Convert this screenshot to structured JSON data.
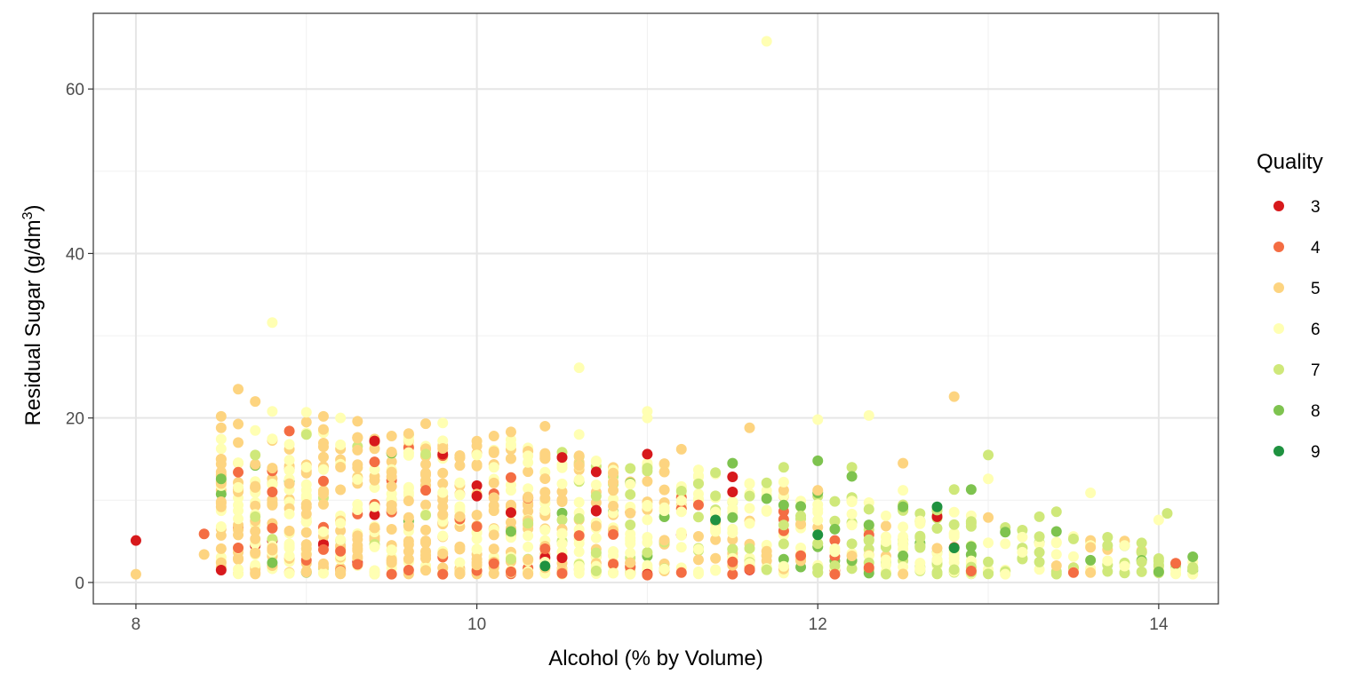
{
  "chart_data": {
    "type": "scatter",
    "title": "",
    "xlabel": "Alcohol (% by Volume)",
    "ylabel_main": "Residual Sugar (g/dm",
    "ylabel_sup": "3",
    "ylabel_end": ")",
    "xlim": [
      7.75,
      14.35
    ],
    "ylim": [
      -2.6,
      69.2
    ],
    "x_ticks": [
      8,
      10,
      12,
      14
    ],
    "x_tick_labels": [
      "8",
      "10",
      "12",
      "14"
    ],
    "y_ticks": [
      0,
      20,
      40,
      60
    ],
    "y_tick_labels": [
      "0",
      "20",
      "40",
      "60"
    ],
    "grid": true,
    "legend": {
      "title": "Quality",
      "placement": "right",
      "entries": [
        {
          "label": "3",
          "color": "#d7191c"
        },
        {
          "label": "4",
          "color": "#f46d43"
        },
        {
          "label": "5",
          "color": "#fdd480"
        },
        {
          "label": "6",
          "color": "#ffffb3"
        },
        {
          "label": "7",
          "color": "#cfe87a"
        },
        {
          "label": "8",
          "color": "#7ec34f"
        },
        {
          "label": "9",
          "color": "#1f9240"
        }
      ]
    },
    "series": [
      {
        "name": "3",
        "color": "#d7191c",
        "points": [
          [
            8.0,
            5.1
          ],
          [
            8.5,
            1.5
          ],
          [
            9.1,
            4.6
          ],
          [
            9.4,
            17.2
          ],
          [
            9.8,
            15.6
          ],
          [
            10.0,
            10.5
          ],
          [
            10.2,
            8.5
          ],
          [
            10.5,
            15.2
          ],
          [
            10.5,
            3.0
          ],
          [
            11.0,
            15.6
          ],
          [
            11.0,
            1.0
          ],
          [
            11.5,
            11.0
          ],
          [
            12.7,
            8.0
          ]
        ]
      },
      {
        "name": "4",
        "color": "#f46d43",
        "points": [
          [
            8.4,
            5.9
          ],
          [
            8.6,
            13.4
          ],
          [
            8.6,
            4.2
          ],
          [
            8.8,
            11.0
          ],
          [
            8.8,
            6.6
          ],
          [
            9.1,
            4.0
          ],
          [
            9.2,
            3.8
          ],
          [
            9.3,
            2.2
          ],
          [
            9.5,
            1.0
          ],
          [
            9.6,
            1.5
          ],
          [
            9.7,
            11.2
          ],
          [
            9.8,
            1.0
          ],
          [
            10.1,
            2.3
          ],
          [
            10.2,
            1.3
          ],
          [
            10.4,
            4.1
          ],
          [
            10.5,
            1.1
          ],
          [
            10.6,
            5.7
          ],
          [
            11.0,
            0.9
          ],
          [
            11.2,
            1.2
          ],
          [
            11.5,
            2.5
          ],
          [
            11.6,
            1.6
          ],
          [
            12.1,
            1.0
          ],
          [
            12.3,
            1.8
          ],
          [
            12.9,
            1.4
          ],
          [
            13.5,
            1.2
          ]
        ]
      },
      {
        "name": "5",
        "color": "#fdd480",
        "points": [
          [
            8.0,
            1.0
          ],
          [
            8.4,
            3.4
          ],
          [
            8.5,
            20.2
          ],
          [
            8.5,
            9.2
          ],
          [
            8.6,
            23.5
          ],
          [
            8.7,
            22.0
          ],
          [
            8.7,
            1.2
          ],
          [
            8.8,
            13.9
          ],
          [
            9.0,
            19.5
          ],
          [
            9.1,
            20.2
          ],
          [
            9.3,
            19.6
          ],
          [
            9.5,
            17.8
          ],
          [
            9.6,
            18.1
          ],
          [
            9.7,
            19.3
          ],
          [
            9.8,
            16.3
          ],
          [
            9.9,
            15.2
          ],
          [
            10.1,
            17.8
          ],
          [
            10.2,
            18.3
          ],
          [
            10.4,
            19.0
          ],
          [
            10.6,
            14.2
          ],
          [
            10.8,
            13.3
          ],
          [
            11.0,
            12.3
          ],
          [
            11.2,
            16.2
          ],
          [
            11.6,
            18.8
          ],
          [
            12.0,
            11.2
          ],
          [
            12.5,
            14.5
          ],
          [
            12.8,
            22.6
          ],
          [
            13.6,
            1.2
          ]
        ]
      },
      {
        "name": "6",
        "color": "#ffffb3",
        "points": [
          [
            8.8,
            31.6
          ],
          [
            10.6,
            26.1
          ],
          [
            11.7,
            65.8
          ],
          [
            8.8,
            20.8
          ],
          [
            9.0,
            20.7
          ],
          [
            9.2,
            20.0
          ],
          [
            9.8,
            19.4
          ],
          [
            10.0,
            15.5
          ],
          [
            10.3,
            14.6
          ],
          [
            10.6,
            18.0
          ],
          [
            11.0,
            20.8
          ],
          [
            11.0,
            20.0
          ],
          [
            11.3,
            13.0
          ],
          [
            11.8,
            12.2
          ],
          [
            12.0,
            19.8
          ],
          [
            12.3,
            20.3
          ],
          [
            12.5,
            11.2
          ],
          [
            13.0,
            12.6
          ],
          [
            13.6,
            10.9
          ],
          [
            13.8,
            4.5
          ],
          [
            14.0,
            7.6
          ],
          [
            9.4,
            1.0
          ],
          [
            10.9,
            1.0
          ]
        ]
      },
      {
        "name": "7",
        "color": "#cfe87a",
        "points": [
          [
            8.7,
            15.5
          ],
          [
            8.7,
            8.0
          ],
          [
            9.0,
            18.0
          ],
          [
            9.7,
            15.6
          ],
          [
            10.3,
            7.2
          ],
          [
            10.7,
            10.5
          ],
          [
            11.0,
            13.9
          ],
          [
            11.3,
            12.0
          ],
          [
            11.6,
            10.5
          ],
          [
            11.8,
            14.0
          ],
          [
            12.2,
            14.0
          ],
          [
            12.7,
            8.8
          ],
          [
            12.8,
            11.3
          ],
          [
            13.0,
            15.5
          ],
          [
            13.3,
            8.0
          ],
          [
            13.4,
            8.6
          ],
          [
            13.5,
            5.3
          ],
          [
            13.7,
            4.5
          ],
          [
            13.9,
            2.5
          ],
          [
            14.0,
            2.6
          ],
          [
            14.05,
            8.4
          ],
          [
            14.2,
            1.6
          ]
        ]
      },
      {
        "name": "8",
        "color": "#7ec34f",
        "points": [
          [
            8.5,
            12.6
          ],
          [
            8.8,
            2.4
          ],
          [
            10.2,
            6.2
          ],
          [
            11.5,
            14.5
          ],
          [
            11.5,
            7.9
          ],
          [
            11.7,
            10.2
          ],
          [
            12.0,
            14.8
          ],
          [
            12.2,
            12.9
          ],
          [
            12.5,
            9.2
          ],
          [
            12.9,
            11.3
          ],
          [
            13.4,
            6.2
          ],
          [
            13.6,
            2.7
          ],
          [
            14.0,
            1.3
          ]
        ]
      },
      {
        "name": "9",
        "color": "#1f9240",
        "points": [
          [
            10.4,
            2.0
          ],
          [
            11.4,
            7.6
          ],
          [
            12.0,
            5.8
          ],
          [
            12.7,
            9.2
          ],
          [
            12.8,
            4.2
          ]
        ]
      }
    ]
  }
}
